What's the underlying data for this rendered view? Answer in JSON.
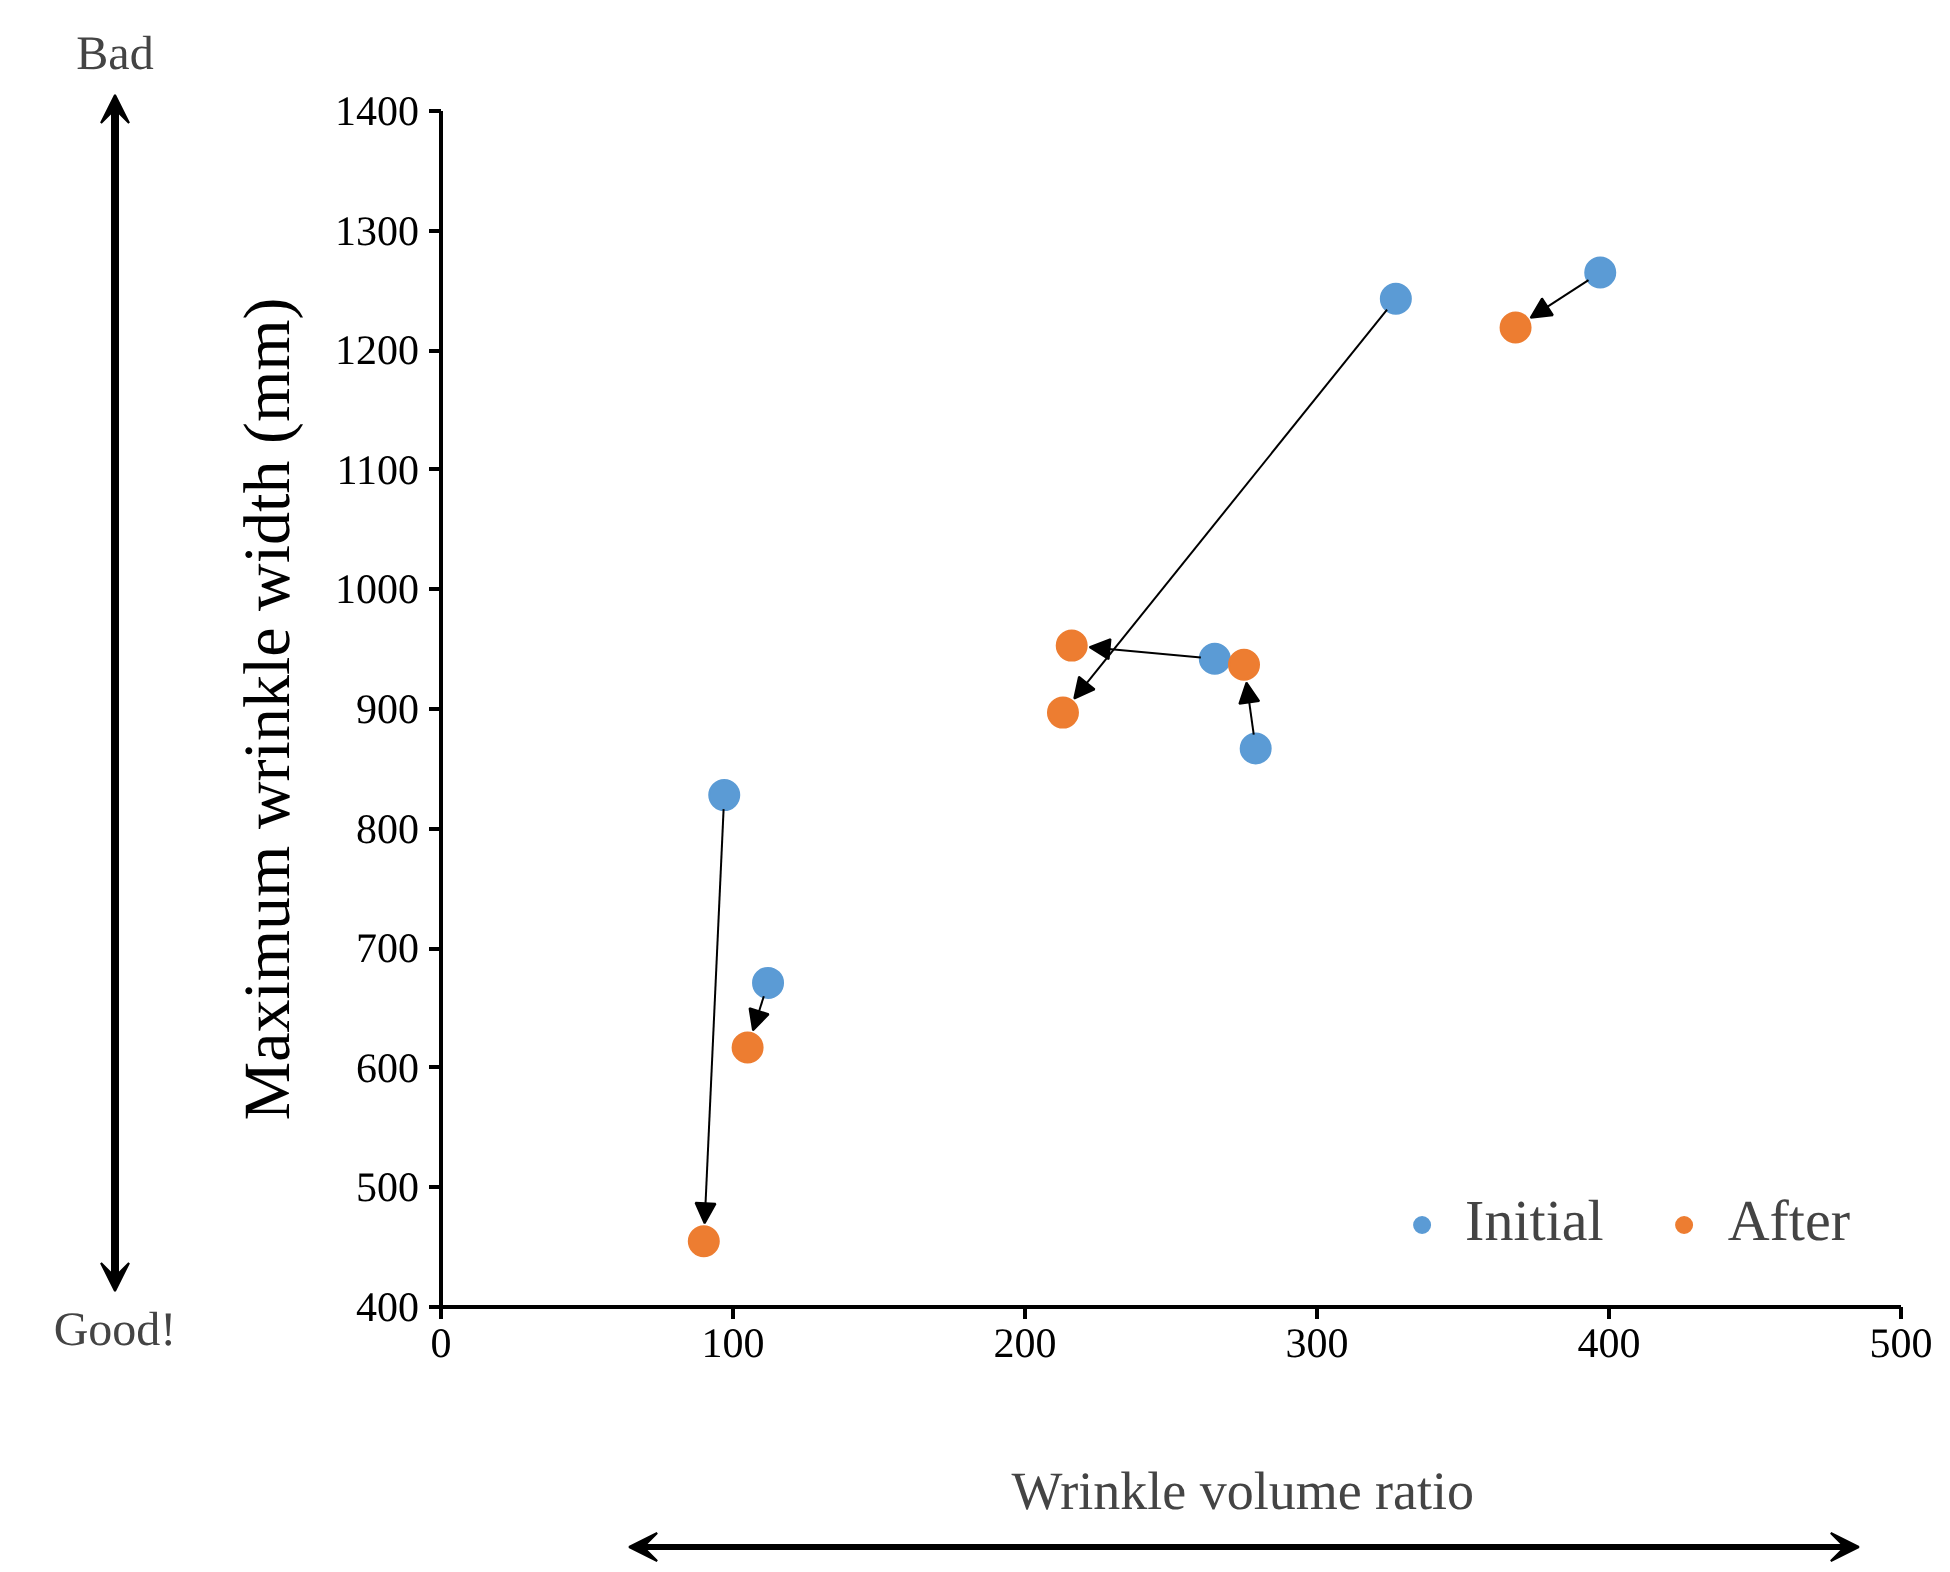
{
  "chart_data": {
    "type": "scatter",
    "xlabel": "Wrinkle volume ratio",
    "ylabel": "Maximum wrinkle width (mm)",
    "xlim": [
      0,
      500
    ],
    "xticks": [
      0,
      100,
      200,
      300,
      400,
      500
    ],
    "ylim": [
      400,
      1400
    ],
    "yticks": [
      400,
      500,
      600,
      700,
      800,
      900,
      1000,
      1100,
      1200,
      1300,
      1400
    ],
    "series": [
      {
        "name": "Initial",
        "color": "#5b9bd5",
        "x": [
          97,
          112,
          265,
          279,
          327,
          397
        ],
        "values": [
          828,
          671,
          942,
          867,
          1243,
          1265
        ]
      },
      {
        "name": "After",
        "color": "#ed7d31",
        "x": [
          90,
          105,
          216,
          275,
          213,
          368
        ],
        "values": [
          455,
          617,
          953,
          937,
          897,
          1219
        ]
      }
    ],
    "annotations": [
      "Bad",
      "Good!"
    ],
    "marker": "circle",
    "legend": "bottom right",
    "grid": false
  }
}
